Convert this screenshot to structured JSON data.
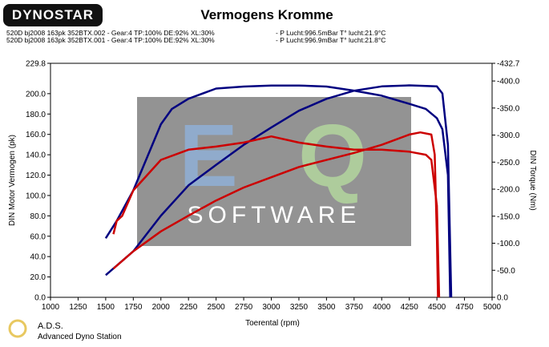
{
  "logo": "DYNOSTAR",
  "footer": {
    "title": "A.D.S.",
    "subtitle": "Advanced Dyno Station"
  },
  "watermark": {
    "letters": [
      "E",
      "Q"
    ],
    "text": "SOFTWARE"
  },
  "legend": [
    {
      "text": "520D bj2008 163pk 352BTX.002 - Gear:4 TP:100% DE:92% XL:30%",
      "extra": "- P Lucht:996.5mBar T° lucht:21.9°C",
      "color": "#000000"
    },
    {
      "text": "520D bj2008 163pk 352BTX.001 - Gear:4 TP:100% DE:92% XL:30%",
      "extra": "- P Lucht:996.9mBar T° lucht:21.8°C",
      "color": "#cc0000"
    }
  ],
  "chart_data": {
    "type": "line",
    "title": "Vermogens Kromme",
    "x_label": "Toerental (rpm)",
    "y_label": "DIN Motor Vermogen (pk)",
    "y2_label": "DIN Torque (Nm)",
    "xlim": [
      1000,
      5000
    ],
    "xticks": [
      1000,
      1250,
      1500,
      1750,
      2000,
      2250,
      2500,
      2750,
      3000,
      3250,
      3500,
      3750,
      4000,
      4250,
      4500,
      4750,
      5000
    ],
    "ylim": [
      0,
      229.8
    ],
    "yticks": [
      {
        "value": 0,
        "label": "0.0"
      },
      {
        "value": 20,
        "label": "20.0"
      },
      {
        "value": 40,
        "label": "40.0"
      },
      {
        "value": 60,
        "label": "60.0"
      },
      {
        "value": 80,
        "label": "80.0"
      },
      {
        "value": 100,
        "label": "100.0"
      },
      {
        "value": 120,
        "label": "120.0"
      },
      {
        "value": 140,
        "label": "140.0"
      },
      {
        "value": 160,
        "label": "160.0"
      },
      {
        "value": 180,
        "label": "180.0"
      },
      {
        "value": 200,
        "label": "200.0"
      },
      229.8
    ],
    "y2lim": [
      0,
      -432.7
    ],
    "y2ticks": [
      {
        "value": 0,
        "label": "0.0"
      },
      {
        "value": -50,
        "label": "-50.0"
      },
      {
        "value": -100,
        "label": "-100.0"
      },
      {
        "value": -150,
        "label": "-150.0"
      },
      {
        "value": -200,
        "label": "-200.0"
      },
      {
        "value": -250,
        "label": "-250.0"
      },
      {
        "value": -300,
        "label": "-300.0"
      },
      {
        "value": -350,
        "label": "-350.0"
      },
      {
        "value": -400,
        "label": "-400.0"
      },
      -432.7
    ],
    "series": [
      {
        "color": "#000080",
        "x": [
          1500,
          1600,
          1750,
          2000,
          2100,
          2250,
          2500,
          2750,
          3000,
          3250,
          3500,
          3750,
          4000,
          4250,
          4400,
          4500,
          4550,
          4600,
          4620
        ],
        "values": [
          58,
          75,
          105,
          170,
          185,
          195,
          205,
          207,
          208,
          208,
          207,
          203,
          198,
          190,
          185,
          176,
          165,
          120,
          0
        ]
      },
      {
        "color": "#000080",
        "axis": "y2",
        "x": [
          1500,
          1750,
          2000,
          2250,
          2500,
          2750,
          3000,
          3250,
          3500,
          3750,
          4000,
          4250,
          4500,
          4550,
          4600,
          4630
        ],
        "values": [
          -41,
          -85,
          -151,
          -207,
          -245,
          -282,
          -314,
          -345,
          -367,
          -382,
          -390,
          -392,
          -390,
          -377,
          -282,
          0
        ]
      },
      {
        "color": "#cc0000",
        "x": [
          1570,
          1600,
          1650,
          1750,
          2000,
          2250,
          2500,
          2750,
          3000,
          3250,
          3500,
          3750,
          4000,
          4250,
          4400,
          4450,
          4500,
          4520
        ],
        "values": [
          62,
          75,
          80,
          105,
          135,
          145,
          148,
          152,
          158,
          152,
          148,
          145,
          145,
          143,
          140,
          135,
          90,
          0
        ]
      },
      {
        "color": "#cc0000",
        "axis": "y2",
        "x": [
          1570,
          1750,
          2000,
          2250,
          2500,
          2750,
          3000,
          3250,
          3500,
          3750,
          4000,
          4250,
          4350,
          4450,
          4480,
          4500,
          4510
        ],
        "values": [
          -53,
          -85,
          -122,
          -151,
          -179,
          -203,
          -222,
          -241,
          -254,
          -267,
          -282,
          -301,
          -305,
          -301,
          -264,
          -113,
          0
        ]
      }
    ]
  }
}
